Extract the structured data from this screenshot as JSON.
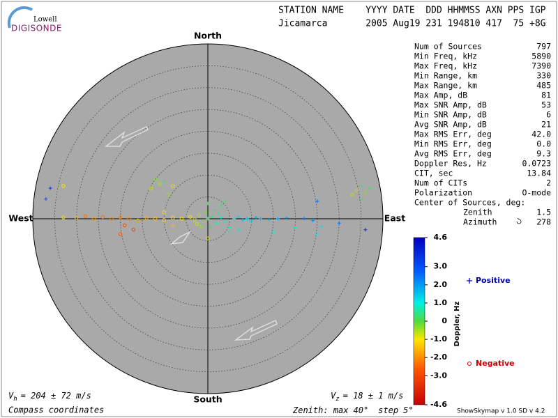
{
  "logo": {
    "top": "Lowell",
    "bottom": "DIGISONDE"
  },
  "header": {
    "labels": "STATION NAME    YYYY DATE  DDD HHMMSS AXN PPS IGP",
    "values": "Jicamarca       2005 Aug19 231 194810 417  75 +8G"
  },
  "stats": {
    "rows": [
      [
        "Num of Sources",
        "797"
      ],
      [
        "Min Freq, kHz",
        "5890"
      ],
      [
        "Max Freq, kHz",
        "7390"
      ],
      [
        "Min Range, km",
        "330"
      ],
      [
        "Max Range, km",
        "485"
      ],
      [
        "Max Amp, dB",
        "81"
      ],
      [
        "Max SNR Amp, dB",
        "53"
      ],
      [
        "Min SNR Amp, dB",
        "6"
      ],
      [
        "Avg SNR Amp, dB",
        "21"
      ],
      [
        "Max RMS Err, deg",
        "42.0"
      ],
      [
        "Min RMS Err, deg",
        "0.0"
      ],
      [
        "Avg RMS Err, deg",
        "9.3"
      ],
      [
        "Doppler Res, Hz",
        "0.0723"
      ],
      [
        "CIT, sec",
        "13.84"
      ],
      [
        "Num of CITs",
        "2"
      ],
      [
        "Polarization",
        "O-mode"
      ]
    ],
    "center": {
      "label": "Center of Sources, deg:",
      "rows": [
        [
          "Zenith",
          "1.5"
        ],
        [
          "Azimuth",
          "278"
        ]
      ]
    }
  },
  "chart_data": {
    "type": "scatter",
    "directions": {
      "north": "North",
      "south": "South",
      "west": "West",
      "east": "East"
    },
    "zenith": {
      "prefix": "Zenith: max",
      "max": 40,
      "step_label": "step",
      "step": 5,
      "unit": "°"
    },
    "x": [
      0,
      1,
      -1,
      2,
      -2,
      0.5,
      -0.5,
      3,
      -3,
      1.5,
      -1.5,
      4,
      -4,
      2.5,
      -2.5,
      0,
      0,
      5,
      6,
      7,
      8,
      9,
      10,
      11,
      12,
      14,
      16,
      18,
      22,
      24,
      26,
      5,
      7,
      3,
      4,
      -6,
      -8,
      -10,
      -12,
      -14,
      -16,
      -18,
      -20,
      -22,
      -24,
      -26,
      -28,
      -30,
      -33,
      -17,
      -19,
      -20,
      -8,
      -10,
      -11,
      -12,
      -10,
      -13,
      -8,
      -9,
      34,
      35,
      36,
      35,
      33,
      37,
      -36,
      -33,
      -37,
      36,
      30,
      25,
      20,
      15,
      25
    ],
    "y": [
      0,
      0.5,
      -0.5,
      -1,
      0.8,
      -2,
      1.5,
      0.3,
      -0.2,
      2,
      -1.8,
      -0.6,
      0.4,
      1.2,
      -1.2,
      3.5,
      -4.5,
      -2,
      0,
      0.5,
      -0.3,
      0,
      -0.5,
      0.3,
      0,
      -0.2,
      0,
      0.2,
      0.1,
      -0.4,
      -1.8,
      -3,
      -2.5,
      3,
      4,
      0,
      0.2,
      -0.3,
      0,
      0.2,
      -0.4,
      0,
      0.3,
      0,
      0.4,
      0,
      0.6,
      0.2,
      0.3,
      -2.5,
      -1.5,
      -3.5,
      -1.5,
      1.5,
      8,
      9,
      8.5,
      7,
      7.5,
      5.5,
      6.5,
      7.5,
      6,
      4.5,
      5.5,
      7,
      7,
      7.5,
      4.5,
      -2.5,
      -1,
      4,
      -2,
      -3,
      -3.5
    ],
    "values": [
      0.2,
      0.4,
      -0.3,
      0.6,
      -0.5,
      0.1,
      -0.2,
      0.8,
      -0.7,
      0.3,
      -0.4,
      0.9,
      -0.9,
      0.5,
      -0.6,
      0.1,
      -0.8,
      1.0,
      1.2,
      1.3,
      1.5,
      1.6,
      1.4,
      1.7,
      1.8,
      1.6,
      2.0,
      1.9,
      2.3,
      2.1,
      1.2,
      0.7,
      1.1,
      0.4,
      0.2,
      -1.0,
      -1.1,
      -1.2,
      -1.4,
      -1.6,
      -1.8,
      -2.0,
      -2.2,
      -2.1,
      -2.3,
      -1.9,
      -2.4,
      -1.5,
      -1.2,
      -3.2,
      -2.9,
      -2.7,
      -1.5,
      -0.9,
      -0.5,
      -0.3,
      0.2,
      -0.6,
      -0.8,
      -0.4,
      -0.5,
      0.6,
      -0.3,
      0.3,
      -0.6,
      0.2,
      3.5,
      -1.0,
      3.0,
      3.8,
      2.5,
      2.6,
      1.1,
      0.8,
      0.9
    ],
    "colorbar": {
      "label": "Doppler, Hz",
      "lim": [
        -4.6,
        4.6
      ],
      "ticks": [
        4.6,
        {
          "value": 3,
          "label": "3.0"
        },
        {
          "value": 2,
          "label": "2.0"
        },
        {
          "value": 1,
          "label": "1.0"
        },
        0,
        {
          "value": -1,
          "label": "-1.0"
        },
        {
          "value": -2,
          "label": "-2.0"
        },
        {
          "value": -3,
          "label": "-3.0"
        },
        -4.6
      ]
    },
    "legend": {
      "positive": "Positive",
      "negative": "Negative"
    },
    "vh": {
      "symbol": "V",
      "sub": "h",
      "text": "= 204 ± 72 m/s"
    },
    "vz": {
      "symbol": "V",
      "sub": "z",
      "text": "= 18 ± 1 m/s"
    },
    "coordinates": "Compass coordinates"
  },
  "version": "ShowSkymap v 1.0  SD v 4.2"
}
